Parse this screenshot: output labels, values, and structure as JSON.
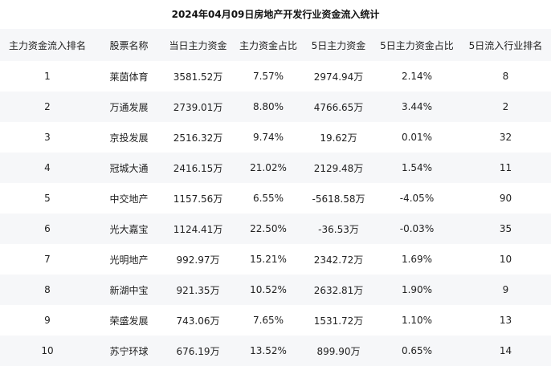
{
  "title": "2024年04月09日房地产开发行业资金流入统计",
  "table": {
    "headers": [
      "主力资金流入排名",
      "股票名称",
      "当日主力资金",
      "主力资金占比",
      "5日主力资金",
      "5日主力资金占比",
      "5日流入行业排名"
    ],
    "rows": [
      [
        "1",
        "莱茵体育",
        "3581.52万",
        "7.57%",
        "2974.94万",
        "2.14%",
        "8"
      ],
      [
        "2",
        "万通发展",
        "2739.01万",
        "8.80%",
        "4766.65万",
        "3.44%",
        "2"
      ],
      [
        "3",
        "京投发展",
        "2516.32万",
        "9.74%",
        "19.62万",
        "0.01%",
        "32"
      ],
      [
        "4",
        "冠城大通",
        "2416.15万",
        "21.02%",
        "2129.48万",
        "1.54%",
        "11"
      ],
      [
        "5",
        "中交地产",
        "1157.56万",
        "6.55%",
        "-5618.58万",
        "-4.05%",
        "90"
      ],
      [
        "6",
        "光大嘉宝",
        "1124.41万",
        "22.50%",
        "-36.53万",
        "-0.03%",
        "35"
      ],
      [
        "7",
        "光明地产",
        "992.97万",
        "15.21%",
        "2342.72万",
        "1.69%",
        "10"
      ],
      [
        "8",
        "新湖中宝",
        "921.35万",
        "10.52%",
        "2632.81万",
        "1.90%",
        "9"
      ],
      [
        "9",
        "荣盛发展",
        "743.06万",
        "7.65%",
        "1531.72万",
        "1.10%",
        "13"
      ],
      [
        "10",
        "苏宁环球",
        "676.19万",
        "13.52%",
        "899.90万",
        "0.65%",
        "14"
      ]
    ]
  }
}
